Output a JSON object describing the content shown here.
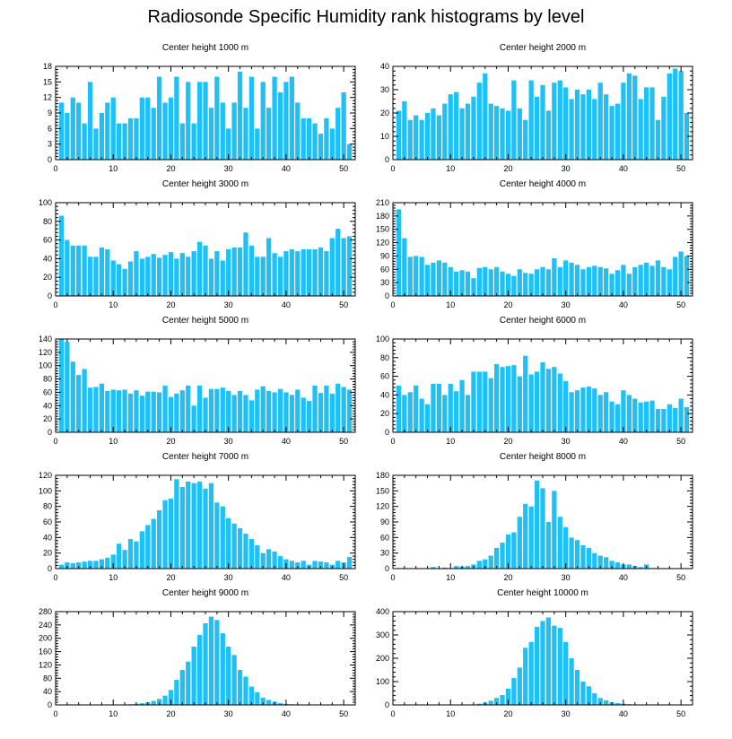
{
  "title": "Radiosonde Specific Humidity rank histograms by level",
  "colors": {
    "bar": "#1ec0f6",
    "axis": "#000000"
  },
  "chart_data": [
    {
      "type": "bar",
      "title": "Center height 1000 m",
      "x": [
        1,
        2,
        3,
        4,
        5,
        6,
        7,
        8,
        9,
        10,
        11,
        12,
        13,
        14,
        15,
        16,
        17,
        18,
        19,
        20,
        21,
        22,
        23,
        24,
        25,
        26,
        27,
        28,
        29,
        30,
        31,
        32,
        33,
        34,
        35,
        36,
        37,
        38,
        39,
        40,
        41,
        42,
        43,
        44,
        45,
        46,
        47,
        48,
        49,
        50,
        51
      ],
      "values": [
        11,
        9,
        12,
        11,
        7,
        15,
        6,
        9,
        11,
        12,
        7,
        7,
        8,
        8,
        12,
        12,
        10,
        16,
        11,
        12,
        16,
        7,
        15,
        7,
        15,
        15,
        10,
        16,
        11,
        6,
        11,
        17,
        10,
        16,
        6,
        15,
        10,
        16,
        13,
        15,
        16,
        11,
        8,
        8,
        7,
        5,
        8,
        6,
        10,
        13,
        3
      ],
      "xlim": [
        0,
        52
      ],
      "ylim": [
        0,
        18
      ],
      "yticks": [
        0,
        3,
        6,
        9,
        12,
        15,
        18
      ],
      "xticks": [
        0,
        10,
        20,
        30,
        40,
        50
      ]
    },
    {
      "type": "bar",
      "title": "Center height 2000 m",
      "x": [
        1,
        2,
        3,
        4,
        5,
        6,
        7,
        8,
        9,
        10,
        11,
        12,
        13,
        14,
        15,
        16,
        17,
        18,
        19,
        20,
        21,
        22,
        23,
        24,
        25,
        26,
        27,
        28,
        29,
        30,
        31,
        32,
        33,
        34,
        35,
        36,
        37,
        38,
        39,
        40,
        41,
        42,
        43,
        44,
        45,
        46,
        47,
        48,
        49,
        50,
        51
      ],
      "values": [
        21,
        25,
        17,
        19,
        17,
        20,
        22,
        19,
        24,
        28,
        29,
        22,
        24,
        27,
        33,
        37,
        24,
        23,
        22,
        21,
        34,
        22,
        17,
        34,
        27,
        32,
        21,
        33,
        34,
        31,
        26,
        30,
        28,
        30,
        26,
        33,
        28,
        23,
        24,
        33,
        37,
        36,
        26,
        31,
        31,
        17,
        27,
        37,
        39,
        38,
        20
      ],
      "xlim": [
        0,
        52
      ],
      "ylim": [
        0,
        40
      ],
      "yticks": [
        0,
        10,
        20,
        30,
        40
      ],
      "xticks": [
        0,
        10,
        20,
        30,
        40,
        50
      ]
    },
    {
      "type": "bar",
      "title": "Center height 3000 m",
      "x": [
        1,
        2,
        3,
        4,
        5,
        6,
        7,
        8,
        9,
        10,
        11,
        12,
        13,
        14,
        15,
        16,
        17,
        18,
        19,
        20,
        21,
        22,
        23,
        24,
        25,
        26,
        27,
        28,
        29,
        30,
        31,
        32,
        33,
        34,
        35,
        36,
        37,
        38,
        39,
        40,
        41,
        42,
        43,
        44,
        45,
        46,
        47,
        48,
        49,
        50,
        51
      ],
      "values": [
        86,
        60,
        54,
        54,
        54,
        42,
        42,
        52,
        50,
        38,
        34,
        29,
        37,
        48,
        40,
        42,
        45,
        41,
        44,
        47,
        40,
        46,
        42,
        48,
        58,
        54,
        40,
        48,
        38,
        50,
        52,
        52,
        68,
        54,
        42,
        42,
        62,
        46,
        42,
        48,
        50,
        48,
        50,
        50,
        50,
        52,
        48,
        62,
        72,
        62,
        64
      ],
      "xlim": [
        0,
        52
      ],
      "ylim": [
        0,
        100
      ],
      "yticks": [
        0,
        20,
        40,
        60,
        80,
        100
      ],
      "xticks": [
        0,
        10,
        20,
        30,
        40,
        50
      ]
    },
    {
      "type": "bar",
      "title": "Center height 4000 m",
      "x": [
        1,
        2,
        3,
        4,
        5,
        6,
        7,
        8,
        9,
        10,
        11,
        12,
        13,
        14,
        15,
        16,
        17,
        18,
        19,
        20,
        21,
        22,
        23,
        24,
        25,
        26,
        27,
        28,
        29,
        30,
        31,
        32,
        33,
        34,
        35,
        36,
        37,
        38,
        39,
        40,
        41,
        42,
        43,
        44,
        45,
        46,
        47,
        48,
        49,
        50,
        51
      ],
      "values": [
        195,
        130,
        88,
        90,
        88,
        70,
        75,
        80,
        75,
        65,
        55,
        58,
        55,
        40,
        63,
        65,
        60,
        65,
        55,
        50,
        45,
        60,
        52,
        50,
        60,
        65,
        60,
        85,
        65,
        80,
        75,
        70,
        60,
        65,
        68,
        65,
        62,
        50,
        58,
        70,
        50,
        65,
        70,
        75,
        68,
        80,
        65,
        60,
        88,
        100,
        90
      ],
      "xlim": [
        0,
        52
      ],
      "ylim": [
        0,
        210
      ],
      "yticks": [
        0,
        30,
        60,
        90,
        120,
        150,
        180,
        210
      ],
      "xticks": [
        0,
        10,
        20,
        30,
        40,
        50
      ]
    },
    {
      "type": "bar",
      "title": "Center height 5000 m",
      "x": [
        1,
        2,
        3,
        4,
        5,
        6,
        7,
        8,
        9,
        10,
        11,
        12,
        13,
        14,
        15,
        16,
        17,
        18,
        19,
        20,
        21,
        22,
        23,
        24,
        25,
        26,
        27,
        28,
        29,
        30,
        31,
        32,
        33,
        34,
        35,
        36,
        37,
        38,
        39,
        40,
        41,
        42,
        43,
        44,
        45,
        46,
        47,
        48,
        49,
        50,
        51
      ],
      "values": [
        140,
        136,
        106,
        86,
        95,
        67,
        68,
        73,
        62,
        64,
        63,
        64,
        58,
        63,
        55,
        61,
        61,
        60,
        70,
        53,
        58,
        63,
        70,
        40,
        70,
        52,
        65,
        65,
        67,
        62,
        56,
        62,
        56,
        48,
        64,
        69,
        62,
        60,
        65,
        60,
        56,
        64,
        52,
        47,
        70,
        59,
        70,
        58,
        73,
        68,
        64
      ],
      "xlim": [
        0,
        52
      ],
      "ylim": [
        0,
        140
      ],
      "yticks": [
        0,
        20,
        40,
        60,
        80,
        100,
        120,
        140
      ],
      "xticks": [
        0,
        10,
        20,
        30,
        40,
        50
      ]
    },
    {
      "type": "bar",
      "title": "Center height 6000 m",
      "x": [
        1,
        2,
        3,
        4,
        5,
        6,
        7,
        8,
        9,
        10,
        11,
        12,
        13,
        14,
        15,
        16,
        17,
        18,
        19,
        20,
        21,
        22,
        23,
        24,
        25,
        26,
        27,
        28,
        29,
        30,
        31,
        32,
        33,
        34,
        35,
        36,
        37,
        38,
        39,
        40,
        41,
        42,
        43,
        44,
        45,
        46,
        47,
        48,
        49,
        50,
        51
      ],
      "values": [
        50,
        40,
        43,
        50,
        36,
        30,
        52,
        52,
        40,
        52,
        44,
        56,
        40,
        65,
        65,
        65,
        58,
        73,
        70,
        71,
        72,
        60,
        82,
        62,
        65,
        75,
        68,
        70,
        63,
        55,
        43,
        45,
        48,
        49,
        47,
        40,
        43,
        33,
        30,
        45,
        40,
        36,
        32,
        33,
        34,
        25,
        25,
        30,
        26,
        36,
        27
      ],
      "xlim": [
        0,
        52
      ],
      "ylim": [
        0,
        100
      ],
      "yticks": [
        0,
        20,
        40,
        60,
        80,
        100
      ],
      "xticks": [
        0,
        10,
        20,
        30,
        40,
        50
      ]
    },
    {
      "type": "bar",
      "title": "Center height 7000 m",
      "x": [
        1,
        2,
        3,
        4,
        5,
        6,
        7,
        8,
        9,
        10,
        11,
        12,
        13,
        14,
        15,
        16,
        17,
        18,
        19,
        20,
        21,
        22,
        23,
        24,
        25,
        26,
        27,
        28,
        29,
        30,
        31,
        32,
        33,
        34,
        35,
        36,
        37,
        38,
        39,
        40,
        41,
        42,
        43,
        44,
        45,
        46,
        47,
        48,
        49,
        50,
        51
      ],
      "values": [
        5,
        8,
        7,
        8,
        9,
        10,
        10,
        12,
        14,
        18,
        32,
        24,
        38,
        35,
        48,
        56,
        64,
        75,
        88,
        90,
        115,
        105,
        112,
        110,
        112,
        103,
        110,
        85,
        80,
        65,
        58,
        52,
        45,
        38,
        30,
        20,
        25,
        22,
        16,
        12,
        10,
        8,
        10,
        5,
        10,
        9,
        8,
        5,
        10,
        8,
        15
      ],
      "xlim": [
        0,
        52
      ],
      "ylim": [
        0,
        120
      ],
      "yticks": [
        0,
        20,
        40,
        60,
        80,
        100,
        120
      ],
      "xticks": [
        0,
        10,
        20,
        30,
        40,
        50
      ]
    },
    {
      "type": "bar",
      "title": "Center height 8000 m",
      "x": [
        1,
        2,
        3,
        4,
        5,
        6,
        7,
        8,
        9,
        10,
        11,
        12,
        13,
        14,
        15,
        16,
        17,
        18,
        19,
        20,
        21,
        22,
        23,
        24,
        25,
        26,
        27,
        28,
        29,
        30,
        31,
        32,
        33,
        34,
        35,
        36,
        37,
        38,
        39,
        40,
        41,
        42,
        43,
        44,
        45,
        46,
        47,
        48,
        49,
        50,
        51
      ],
      "values": [
        1,
        1,
        1,
        1,
        1,
        1,
        3,
        1,
        2,
        1,
        5,
        4,
        5,
        8,
        15,
        18,
        25,
        40,
        50,
        66,
        70,
        100,
        125,
        120,
        170,
        155,
        90,
        150,
        100,
        80,
        60,
        55,
        45,
        40,
        30,
        25,
        22,
        15,
        12,
        8,
        8,
        5,
        3,
        8,
        1,
        1,
        1,
        1,
        1,
        1,
        1
      ],
      "xlim": [
        0,
        52
      ],
      "ylim": [
        0,
        180
      ],
      "yticks": [
        0,
        30,
        60,
        90,
        120,
        150,
        180
      ],
      "xticks": [
        0,
        10,
        20,
        30,
        40,
        50
      ]
    },
    {
      "type": "bar",
      "title": "Center height 9000 m",
      "x": [
        1,
        2,
        3,
        4,
        5,
        6,
        7,
        8,
        9,
        10,
        11,
        12,
        13,
        14,
        15,
        16,
        17,
        18,
        19,
        20,
        21,
        22,
        23,
        24,
        25,
        26,
        27,
        28,
        29,
        30,
        31,
        32,
        33,
        34,
        35,
        36,
        37,
        38,
        39,
        40,
        41,
        42,
        43,
        44,
        45,
        46,
        47,
        48,
        49,
        50,
        51
      ],
      "values": [
        1,
        1,
        1,
        1,
        1,
        1,
        1,
        1,
        1,
        1,
        1,
        1,
        2,
        3,
        5,
        8,
        12,
        18,
        28,
        45,
        75,
        105,
        130,
        175,
        210,
        245,
        265,
        255,
        215,
        175,
        150,
        105,
        85,
        55,
        38,
        22,
        15,
        10,
        5,
        3,
        2,
        1,
        1,
        1,
        1,
        1,
        1,
        1,
        1,
        1,
        1
      ],
      "xlim": [
        0,
        52
      ],
      "ylim": [
        0,
        280
      ],
      "yticks": [
        0,
        40,
        80,
        120,
        160,
        200,
        240,
        280
      ],
      "xticks": [
        0,
        10,
        20,
        30,
        40,
        50
      ]
    },
    {
      "type": "bar",
      "title": "Center height 10000 m",
      "x": [
        1,
        2,
        3,
        4,
        5,
        6,
        7,
        8,
        9,
        10,
        11,
        12,
        13,
        14,
        15,
        16,
        17,
        18,
        19,
        20,
        21,
        22,
        23,
        24,
        25,
        26,
        27,
        28,
        29,
        30,
        31,
        32,
        33,
        34,
        35,
        36,
        37,
        38,
        39,
        40,
        41,
        42,
        43,
        44,
        45,
        46,
        47,
        48,
        49,
        50,
        51
      ],
      "values": [
        1,
        1,
        1,
        1,
        1,
        1,
        1,
        1,
        1,
        1,
        1,
        1,
        1,
        2,
        5,
        10,
        18,
        30,
        42,
        70,
        115,
        160,
        245,
        270,
        335,
        360,
        375,
        340,
        330,
        270,
        200,
        150,
        100,
        80,
        50,
        30,
        20,
        12,
        8,
        5,
        3,
        1,
        1,
        1,
        1,
        1,
        1,
        1,
        1,
        1,
        1
      ],
      "xlim": [
        0,
        52
      ],
      "ylim": [
        0,
        400
      ],
      "yticks": [
        0,
        100,
        200,
        300,
        400
      ],
      "xticks": [
        0,
        10,
        20,
        30,
        40,
        50
      ]
    }
  ]
}
